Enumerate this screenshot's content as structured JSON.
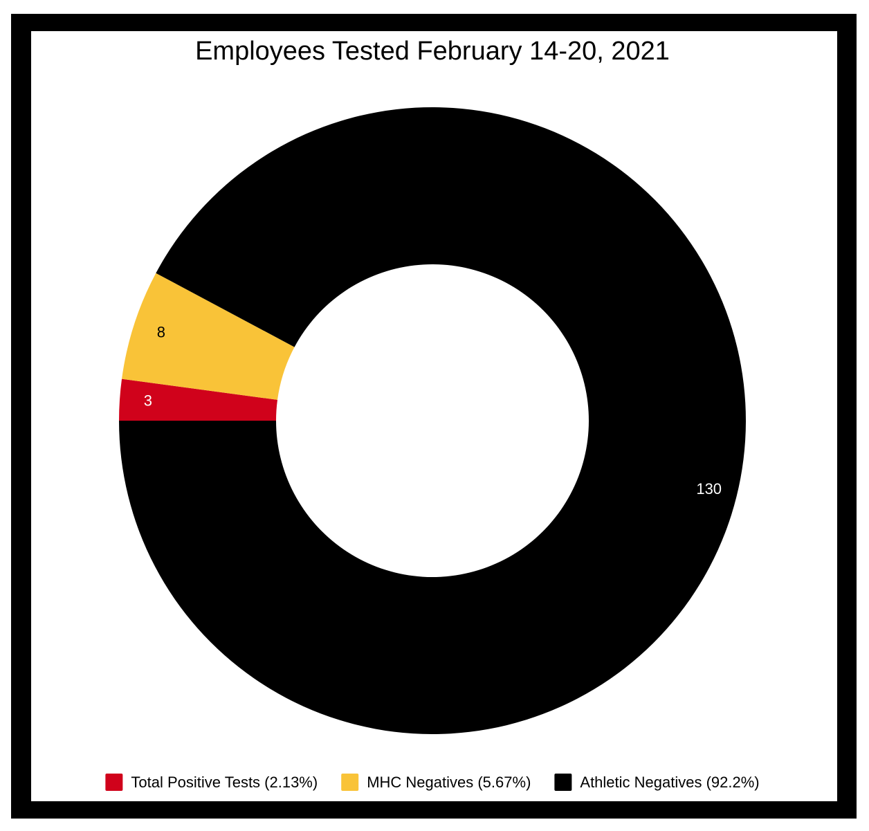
{
  "chart_data": {
    "type": "donut",
    "title": "Employees Tested February 14-20, 2021",
    "categories": [
      "Total Positive Tests (2.13%)",
      "MHC Negatives (5.67%)",
      "Athletic Negatives (92.2%)"
    ],
    "values": [
      3,
      8,
      130
    ],
    "colors": [
      "#d0021b",
      "#f9c338",
      "#000000"
    ],
    "label_colors": [
      "#ffffff",
      "#000000",
      "#ffffff"
    ]
  }
}
